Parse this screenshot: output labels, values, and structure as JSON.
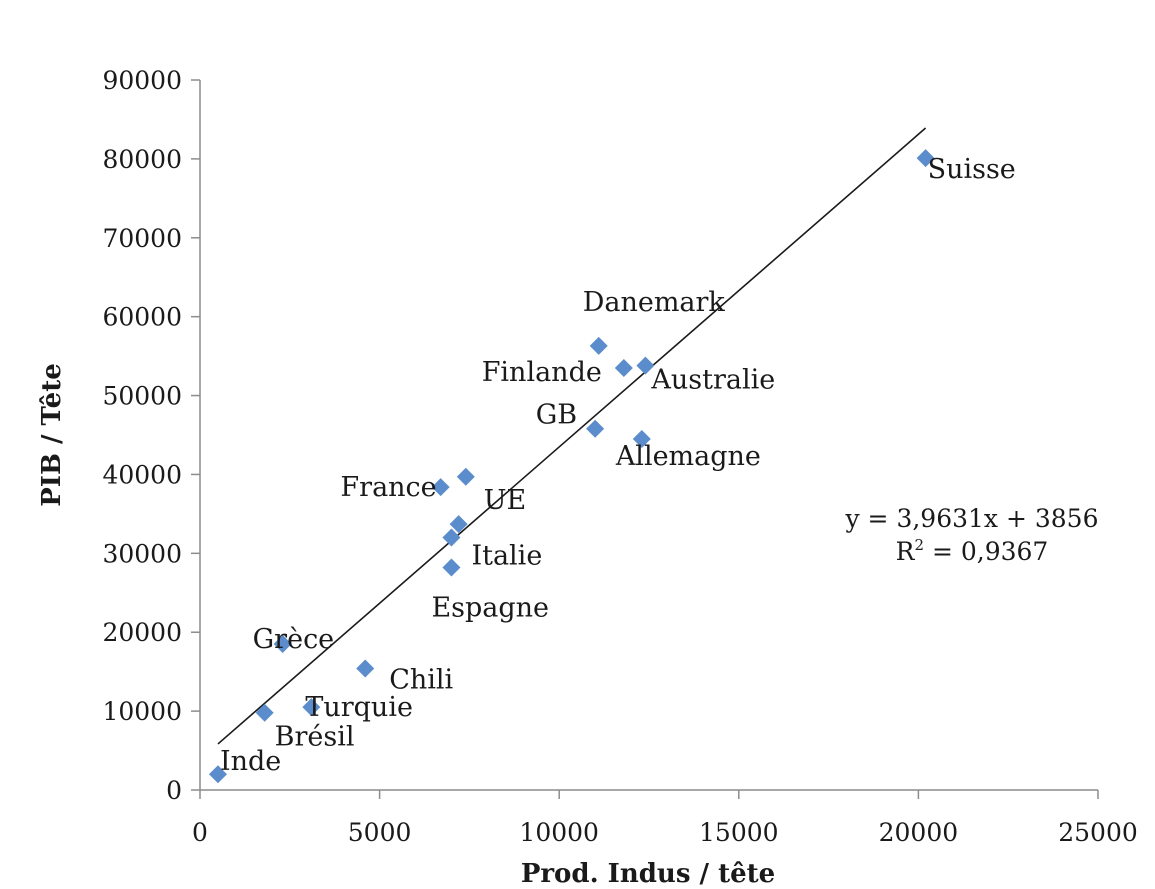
{
  "chart_data": {
    "type": "scatter",
    "xlabel": "Prod. Indus / tête",
    "ylabel": "PIB / Tête",
    "xlim": [
      0,
      25000
    ],
    "ylim": [
      0,
      90000
    ],
    "x_ticks": [
      0,
      5000,
      10000,
      15000,
      20000,
      25000
    ],
    "y_ticks": [
      0,
      10000,
      20000,
      30000,
      40000,
      50000,
      60000,
      70000,
      80000,
      90000
    ],
    "grid": false,
    "marker": "diamond",
    "marker_color": "#5b8ccc",
    "points": [
      {
        "label": "Inde",
        "x": 500,
        "y": 2000
      },
      {
        "label": "Brésil",
        "x": 1800,
        "y": 9800
      },
      {
        "label": "Turquie",
        "x": 3100,
        "y": 10500
      },
      {
        "label": "Grèce",
        "x": 2300,
        "y": 18500
      },
      {
        "label": "Chili",
        "x": 4600,
        "y": 15400
      },
      {
        "label": "France",
        "x": 6700,
        "y": 38400
      },
      {
        "label": "UE",
        "x": 7400,
        "y": 39700
      },
      {
        "label": "",
        "x": 7200,
        "y": 33700
      },
      {
        "label": "Italie",
        "x": 7000,
        "y": 32000
      },
      {
        "label": "Espagne",
        "x": 7000,
        "y": 28200
      },
      {
        "label": "GB",
        "x": 11000,
        "y": 45800
      },
      {
        "label": "Allemagne",
        "x": 12300,
        "y": 44500
      },
      {
        "label": "Danemark",
        "x": 11100,
        "y": 56300
      },
      {
        "label": "Finlande",
        "x": 11800,
        "y": 53500
      },
      {
        "label": "Australie",
        "x": 12400,
        "y": 53800
      },
      {
        "label": "Suisse",
        "x": 20200,
        "y": 80100
      }
    ],
    "trendline": {
      "type": "linear",
      "slope": 3.9631,
      "intercept": 3856,
      "x_range": [
        500,
        20200
      ]
    },
    "equation": "y = 3,9631x + 3856",
    "r_squared_label": "R",
    "r_squared_exp": "2",
    "r_squared_value": " = 0,9367"
  }
}
